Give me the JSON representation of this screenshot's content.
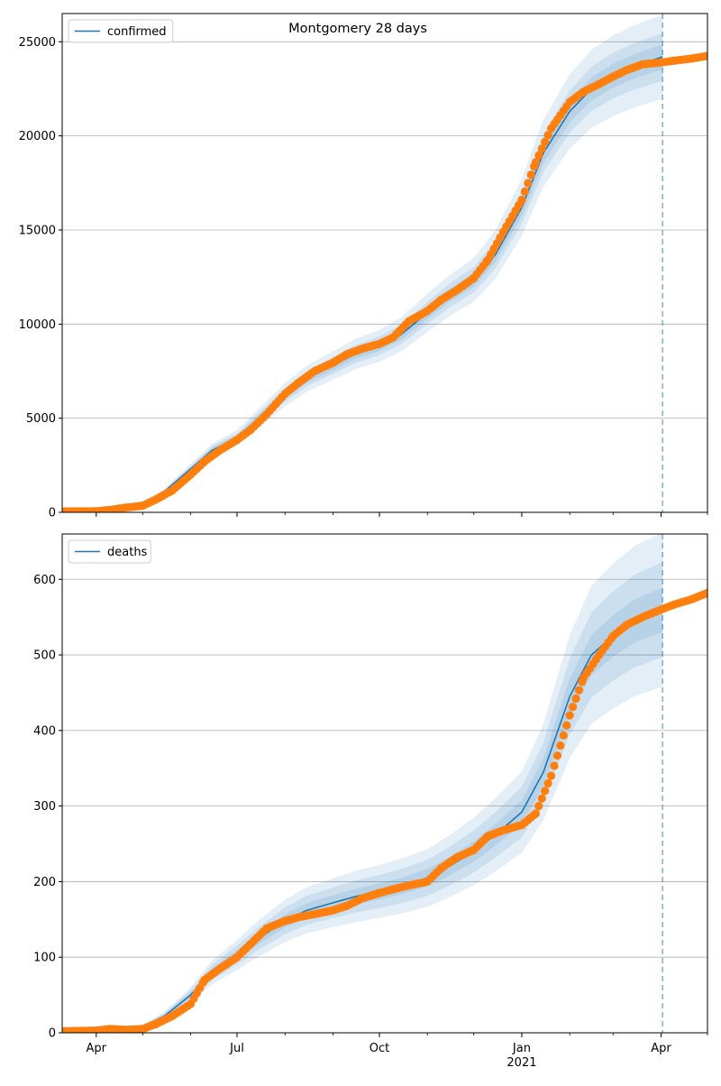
{
  "title": "Montgomery 28 days",
  "colors": {
    "model_line": "#1f77b4",
    "band": "#1f77b4",
    "observed": "#ff7f0e",
    "forecast_marker": "#1f77b4",
    "grid": "#b0b0b0",
    "axis": "#000000"
  },
  "x_ticks": {
    "major": [
      {
        "date": "2020-04-01",
        "label": "Apr"
      },
      {
        "date": "2020-07-01",
        "label": "Jul"
      },
      {
        "date": "2020-10-01",
        "label": "Oct"
      },
      {
        "date": "2021-01-01",
        "label": "Jan"
      },
      {
        "date": "2021-04-01",
        "label": "Apr"
      }
    ],
    "year_label": "2021",
    "year_label_date": "2021-01-01",
    "minor": [
      "2020-05-01",
      "2020-06-01",
      "2020-08-01",
      "2020-09-01",
      "2020-11-01",
      "2020-12-01",
      "2021-02-01",
      "2021-03-01",
      "2021-05-01"
    ]
  },
  "chart_data": [
    {
      "type": "line",
      "legend": "confirmed",
      "legend_position": "upper left",
      "grid": "horizontal",
      "xlim": [
        "2020-03-10",
        "2021-05-01"
      ],
      "ylim": [
        0,
        26500
      ],
      "y_ticks": [
        0,
        5000,
        10000,
        15000,
        20000,
        25000
      ],
      "forecast_date": "2021-04-02",
      "model": {
        "name": "confirmed",
        "dates": [
          "2020-03-10",
          "2020-04-01",
          "2020-04-15",
          "2020-05-01",
          "2020-05-15",
          "2020-06-01",
          "2020-06-15",
          "2020-07-01",
          "2020-07-15",
          "2020-08-01",
          "2020-08-15",
          "2020-09-01",
          "2020-09-15",
          "2020-10-01",
          "2020-10-15",
          "2020-11-01",
          "2020-11-15",
          "2020-12-01",
          "2020-12-15",
          "2021-01-01",
          "2021-01-15",
          "2021-02-01",
          "2021-02-15",
          "2021-03-01",
          "2021-03-15",
          "2021-04-02"
        ],
        "values": [
          0,
          50,
          180,
          420,
          1100,
          2300,
          3300,
          3950,
          5000,
          6250,
          7100,
          7800,
          8400,
          8850,
          9450,
          10600,
          11500,
          12350,
          13700,
          16200,
          19100,
          21300,
          22500,
          23200,
          23700,
          24200
        ],
        "bands": [
          {
            "rel": 0.025,
            "opacity": 0.12
          },
          {
            "rel": 0.05,
            "opacity": 0.12
          },
          {
            "rel": 0.09,
            "opacity": 0.12
          }
        ]
      },
      "observed": {
        "dates": [
          "2020-03-10",
          "2020-04-01",
          "2020-04-10",
          "2020-04-20",
          "2020-05-01",
          "2020-05-10",
          "2020-05-20",
          "2020-06-01",
          "2020-06-10",
          "2020-06-20",
          "2020-07-01",
          "2020-07-10",
          "2020-07-20",
          "2020-08-01",
          "2020-08-10",
          "2020-08-20",
          "2020-09-01",
          "2020-09-10",
          "2020-09-20",
          "2020-10-01",
          "2020-10-10",
          "2020-10-20",
          "2020-11-01",
          "2020-11-10",
          "2020-11-20",
          "2020-12-01",
          "2020-12-10",
          "2020-12-20",
          "2021-01-01",
          "2021-01-10",
          "2021-01-20",
          "2021-02-01",
          "2021-02-10",
          "2021-02-20",
          "2021-03-01",
          "2021-03-10",
          "2021-03-20",
          "2021-04-01",
          "2021-04-10",
          "2021-04-20",
          "2021-05-01"
        ],
        "values": [
          50,
          60,
          130,
          250,
          350,
          700,
          1150,
          2000,
          2700,
          3300,
          3850,
          4400,
          5200,
          6300,
          6900,
          7500,
          7950,
          8400,
          8700,
          8950,
          9300,
          10150,
          10700,
          11300,
          11800,
          12450,
          13400,
          14900,
          16600,
          18600,
          20400,
          21800,
          22350,
          22750,
          23150,
          23500,
          23800,
          23900,
          24000,
          24100,
          24250
        ]
      }
    },
    {
      "type": "line",
      "legend": "deaths",
      "legend_position": "upper left",
      "grid": "horizontal",
      "xlim": [
        "2020-03-10",
        "2021-05-01"
      ],
      "ylim": [
        0,
        660
      ],
      "y_ticks": [
        0,
        100,
        200,
        300,
        400,
        500,
        600
      ],
      "forecast_date": "2021-04-02",
      "model": {
        "name": "deaths",
        "dates": [
          "2020-03-10",
          "2020-04-01",
          "2020-04-15",
          "2020-05-01",
          "2020-05-15",
          "2020-06-01",
          "2020-06-15",
          "2020-07-01",
          "2020-07-15",
          "2020-08-01",
          "2020-08-15",
          "2020-09-01",
          "2020-09-15",
          "2020-10-01",
          "2020-10-15",
          "2020-11-01",
          "2020-11-15",
          "2020-12-01",
          "2020-12-15",
          "2021-01-01",
          "2021-01-15",
          "2021-02-01",
          "2021-02-15",
          "2021-03-01",
          "2021-03-15",
          "2021-04-02"
        ],
        "values": [
          0,
          2,
          4,
          8,
          22,
          50,
          80,
          103,
          125,
          148,
          162,
          172,
          180,
          187,
          194,
          205,
          220,
          240,
          262,
          292,
          345,
          445,
          500,
          525,
          545,
          560
        ],
        "bands": [
          {
            "rel": 0.05,
            "opacity": 0.12
          },
          {
            "rel": 0.11,
            "opacity": 0.12
          },
          {
            "rel": 0.18,
            "opacity": 0.12
          }
        ]
      },
      "observed": {
        "dates": [
          "2020-03-10",
          "2020-04-01",
          "2020-04-10",
          "2020-04-20",
          "2020-05-01",
          "2020-05-10",
          "2020-05-20",
          "2020-06-01",
          "2020-06-10",
          "2020-06-20",
          "2020-07-01",
          "2020-07-10",
          "2020-07-20",
          "2020-08-01",
          "2020-08-10",
          "2020-08-20",
          "2020-09-01",
          "2020-09-10",
          "2020-09-20",
          "2020-10-01",
          "2020-10-10",
          "2020-10-20",
          "2020-11-01",
          "2020-11-10",
          "2020-11-20",
          "2020-12-01",
          "2020-12-10",
          "2020-12-20",
          "2021-01-01",
          "2021-01-10",
          "2021-01-20",
          "2021-02-01",
          "2021-02-10",
          "2021-02-20",
          "2021-03-01",
          "2021-03-10",
          "2021-03-20",
          "2021-04-01",
          "2021-04-10",
          "2021-04-20",
          "2021-05-01"
        ],
        "values": [
          2,
          3,
          5,
          4,
          5,
          12,
          22,
          38,
          70,
          85,
          100,
          118,
          138,
          148,
          153,
          157,
          162,
          168,
          178,
          185,
          190,
          195,
          200,
          218,
          232,
          242,
          260,
          268,
          275,
          290,
          340,
          420,
          470,
          500,
          525,
          540,
          550,
          560,
          567,
          573,
          582
        ]
      }
    }
  ]
}
